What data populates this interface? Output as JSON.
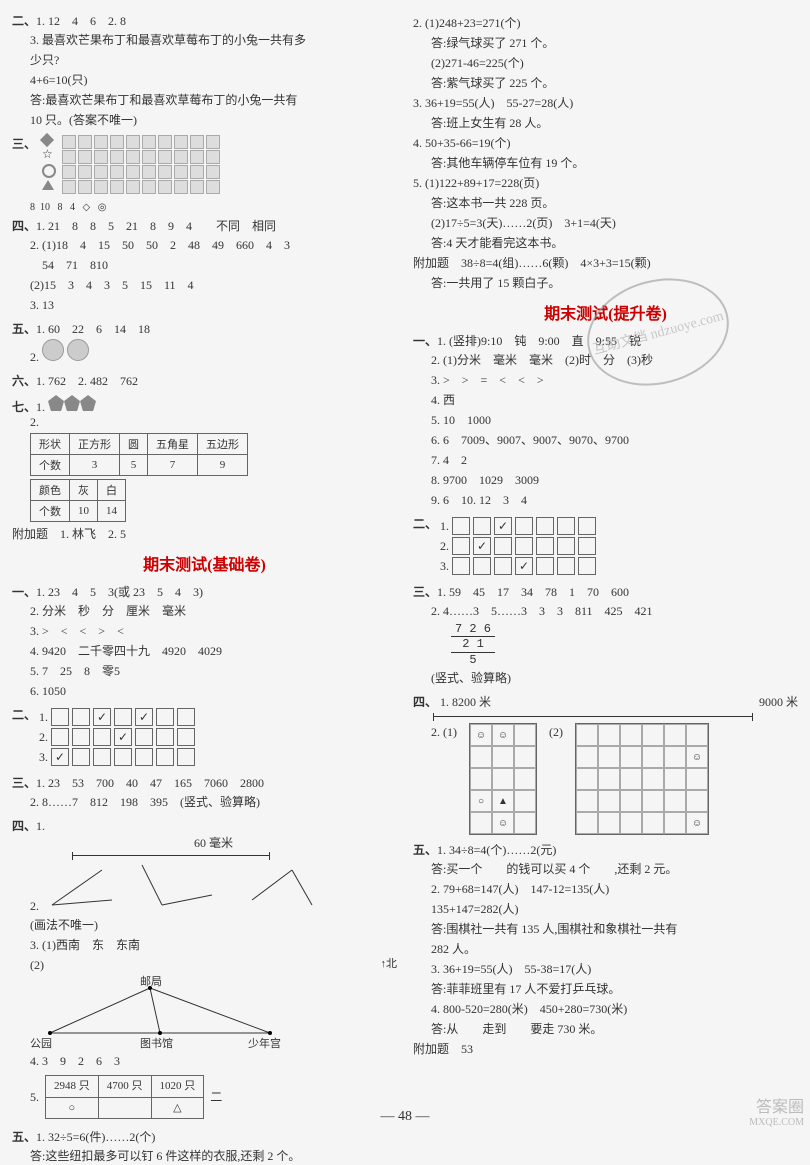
{
  "left": {
    "s2": {
      "head": "二、",
      "l1": "1. 12　4　6　2. 8",
      "l3": "3. 最喜欢芒果布丁和最喜欢草莓布丁的小兔一共有多",
      "l3b": "少只?",
      "l4": "4+6=10(只)",
      "l5": "答:最喜欢芒果布丁和最喜欢草莓布丁的小兔一共有",
      "l5b": "10 只。(答案不唯一)"
    },
    "s3": {
      "head": "三、",
      "cols": [
        "8",
        "10",
        "8",
        "4",
        "◇",
        "◎"
      ],
      "symbols": [
        "◇",
        "☆",
        "◎",
        "△"
      ]
    },
    "s4": {
      "head": "四、",
      "l1": "1. 21　8　8　5　21　8　9　4　　不同　相同",
      "l2": "2. (1)18　4　15　50　50　2　48　49　660　4　3",
      "l2b": "　54　71　810",
      "l3": "(2)15　3　4　3　5　15　11　4",
      "l4": "3. 13"
    },
    "s5": {
      "head": "五、",
      "l1": "1. 60　22　6　14　18",
      "l2": "2."
    },
    "s6": {
      "head": "六、",
      "l1": "1. 762　2. 482　762"
    },
    "s7": {
      "head": "七、",
      "l1": "1.",
      "t1": {
        "r1": [
          "形状",
          "正方形",
          "圆",
          "五角星",
          "五边形"
        ],
        "r2": [
          "个数",
          "3",
          "5",
          "7",
          "9"
        ]
      },
      "t2": {
        "r1": [
          "颜色",
          "灰",
          "白"
        ],
        "r2": [
          "个数",
          "10",
          "14"
        ]
      },
      "bonus": "附加题　1. 林飞　2. 5"
    },
    "title1": "期末测试(基础卷)",
    "b1": {
      "head": "一、",
      "l1": "1. 23　4　5　3(或 23　5　4　3)",
      "l2": "2. 分米　秒　分　厘米　毫米",
      "l3": "3. >　<　<　>　<",
      "l4": "4. 9420　二千零四十九　4920　4029",
      "l5": "5. 7　25　8　零5",
      "l6": "6. 1050"
    },
    "b2": {
      "head": "二、",
      "r1": [
        "",
        "",
        "✓",
        "",
        "✓",
        "",
        ""
      ],
      "r2": [
        "",
        "",
        "",
        "✓",
        "",
        "",
        ""
      ],
      "r3": [
        "✓",
        "",
        "",
        "",
        "",
        "",
        ""
      ]
    },
    "b3": {
      "head": "三、",
      "l1": "1. 23　53　700　40　47　165　7060　2800",
      "l2": "2. 8……7　812　198　395　(竖式、验算略)"
    },
    "b4": {
      "head": "四、",
      "l1": "1.",
      "seg": "60 毫米",
      "note": "(画法不唯一)",
      "l3": "3. (1)西南　东　东南",
      "l3b": "(2)",
      "mapN": "↑北",
      "map": {
        "a": "公园",
        "b": "邮局",
        "c": "图书馆",
        "d": "少年宫"
      },
      "l4": "4. 3　9　2　6　3",
      "l5": "5.",
      "t": {
        "r1": [
          "2948 只",
          "4700 只",
          "1020 只"
        ],
        "r2": [
          "○",
          "",
          "△"
        ]
      },
      "side": "二"
    },
    "b5": {
      "head": "五、",
      "l1": "1. 32÷5=6(件)……2(个)",
      "l2": "答:这些纽扣最多可以钉 6 件这样的衣服,还剩 2 个。"
    }
  },
  "right": {
    "top": {
      "l1": "2. (1)248+23=271(个)",
      "l1a": "答:绿气球买了 271 个。",
      "l2": "(2)271-46=225(个)",
      "l2a": "答:紫气球买了 225 个。",
      "l3": "3. 36+19=55(人)　55-27=28(人)",
      "l3a": "答:班上女生有 28 人。",
      "l4": "4. 50+35-66=19(个)",
      "l4a": "答:其他车辆停车位有 19 个。",
      "l5": "5. (1)122+89+17=228(页)",
      "l5a": "答:这本书一共 228 页。",
      "l6": "(2)17÷5=3(天)……2(页)　3+1=4(天)",
      "l6a": "答:4 天才能看完这本书。",
      "bonus": "附加题　38÷8=4(组)……6(颗)　4×3+3=15(颗)",
      "bonusa": "答:一共用了 15 颗白子。"
    },
    "title2": "期末测试(提升卷)",
    "p1": {
      "head": "一、",
      "l1": "1. (竖排)9:10　钝　9:00　直　9:55　锐",
      "l2": "2. (1)分米　毫米　毫米　(2)时　分　(3)秒",
      "l3": "3. >　>　=　<　<　>",
      "l4": "4. 西",
      "l5": "5. 10　1000",
      "l6": "6. 6　7009、9007、9007、9070、9700",
      "l7": "7. 4　2",
      "l8": "8. 9700　1029　3009",
      "l9": "9. 6　10. 12　3　4"
    },
    "p2": {
      "head": "二、",
      "r1": [
        "",
        "",
        "✓",
        "",
        "",
        "",
        ""
      ],
      "r2": [
        "",
        "✓",
        "",
        "",
        "",
        "",
        ""
      ],
      "r3": [
        "",
        "",
        "",
        "✓",
        "",
        "",
        ""
      ]
    },
    "p3": {
      "head": "三、",
      "l1": "1. 59　45　17　34　78　1　70　600",
      "l2": "2. 4……3　5……3　3　3　811　425　421",
      "vert": {
        "t": "7 2 6",
        "m": "2 1",
        "b": "5"
      },
      "note": "(竖式、验算略)"
    },
    "p4": {
      "head": "四、",
      "l1": "1. 8200 米",
      "l1r": "9000 米",
      "l2": "2. (1)",
      "l2r": "(2)"
    },
    "p5": {
      "head": "五、",
      "l1": "1. 34÷8=4(个)……2(元)",
      "l1a": "答:买一个　　的钱可以买 4 个　　,还剩 2 元。",
      "l2": "2. 79+68=147(人)　147-12=135(人)",
      "l2b": "135+147=282(人)",
      "l2a": "答:围棋社一共有 135 人,围棋社和象棋社一共有",
      "l2c": "282 人。",
      "l3": "3. 36+19=55(人)　55-38=17(人)",
      "l3a": "答:菲菲班里有 17 人不爱打乒乓球。",
      "l4": "4. 800-520=280(米)　450+280=730(米)",
      "l4a": "答:从　　走到　　要走 730 米。",
      "bonus": "附加题　53"
    }
  },
  "footer": "— 48 —",
  "wm1": "答案圈",
  "wm2": "MXQE.COM",
  "stamp": "互助文档 ndzuoye.com"
}
